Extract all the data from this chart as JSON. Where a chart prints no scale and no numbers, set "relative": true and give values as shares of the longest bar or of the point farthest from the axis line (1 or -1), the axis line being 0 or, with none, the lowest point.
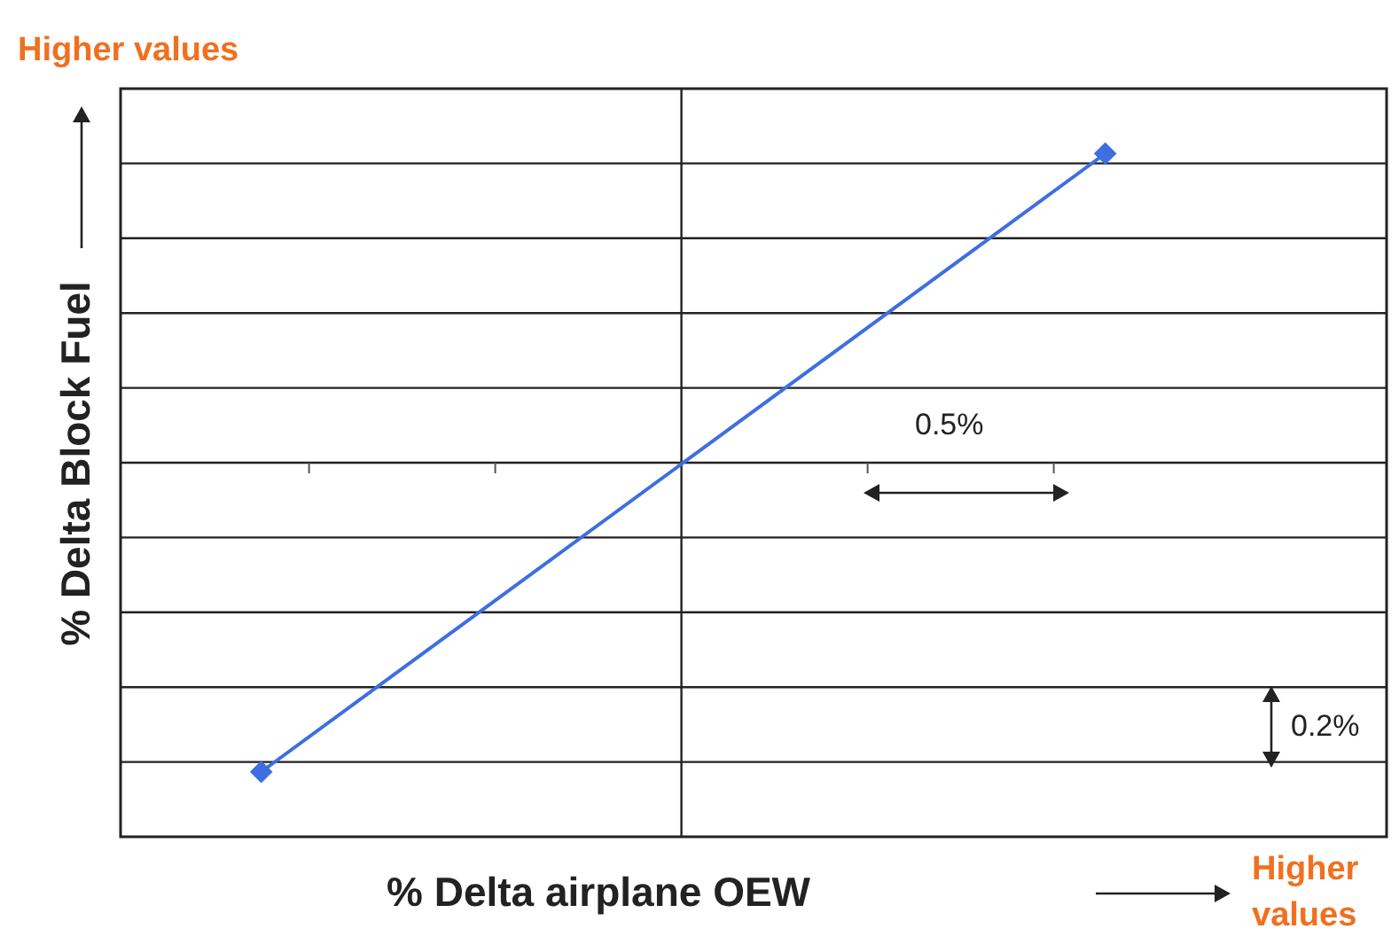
{
  "chart_data": {
    "type": "line",
    "relative": true,
    "xlabel": "% Delta airplane OEW",
    "ylabel": "% Delta Block Fuel",
    "annotations": [
      "Higher values",
      "Higher values",
      "0.5%",
      "0.2%"
    ],
    "categories": [
      null,
      null,
      null,
      null,
      null,
      null,
      null,
      null,
      null,
      null
    ],
    "series": [
      {
        "color": "#3d6fe0",
        "values": [
          null,
          -1,
          null,
          null,
          null,
          null,
          null,
          1,
          null,
          null
        ]
      }
    ],
    "grid": true,
    "marker": "diamond",
    "line_style": "solid"
  }
}
